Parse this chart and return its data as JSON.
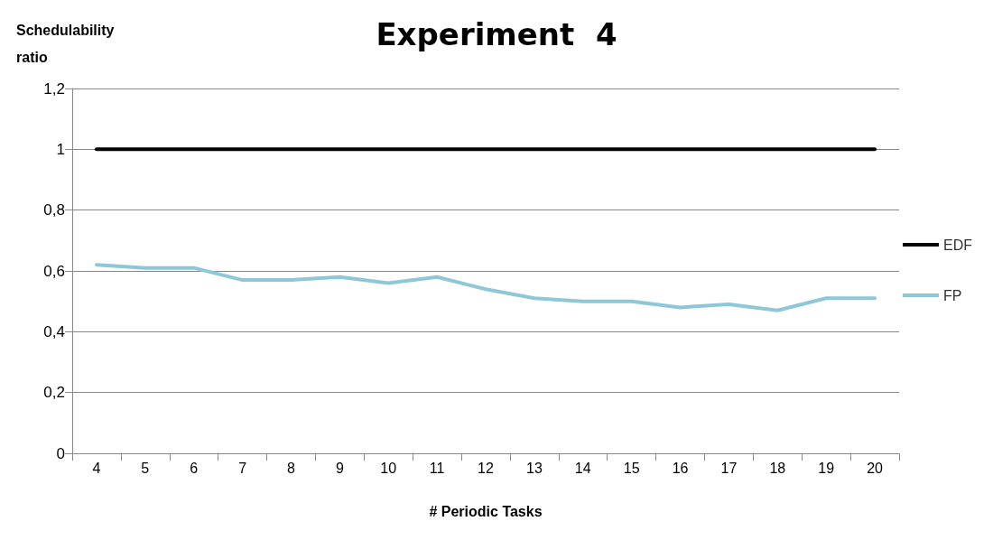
{
  "chart_data": {
    "type": "line",
    "title": "Experiment  4",
    "xlabel": "# Periodic Tasks",
    "ylabel": "Schedulability ratio",
    "categories": [
      "4",
      "5",
      "6",
      "7",
      "8",
      "9",
      "10",
      "11",
      "12",
      "13",
      "14",
      "15",
      "16",
      "17",
      "18",
      "19",
      "20"
    ],
    "series": [
      {
        "name": "EDF",
        "color": "#000000",
        "values": [
          1,
          1,
          1,
          1,
          1,
          1,
          1,
          1,
          1,
          1,
          1,
          1,
          1,
          1,
          1,
          1,
          1
        ]
      },
      {
        "name": "FP",
        "color": "#8ec8d8",
        "values": [
          0.62,
          0.61,
          0.61,
          0.57,
          0.57,
          0.58,
          0.56,
          0.58,
          0.54,
          0.51,
          0.5,
          0.5,
          0.48,
          0.49,
          0.47,
          0.51,
          0.51
        ]
      }
    ],
    "ylim": [
      0,
      1.2
    ],
    "yticks": [
      0,
      {
        "value": 0.2,
        "label": "0,2"
      },
      {
        "value": 0.4,
        "label": "0,4"
      },
      {
        "value": 0.6,
        "label": "0,6"
      },
      {
        "value": 0.8,
        "label": "0,8"
      },
      1,
      {
        "value": 1.2,
        "label": "1,2"
      }
    ],
    "grid": "y",
    "legend": "right",
    "marker": "none",
    "line_style": "solid"
  }
}
